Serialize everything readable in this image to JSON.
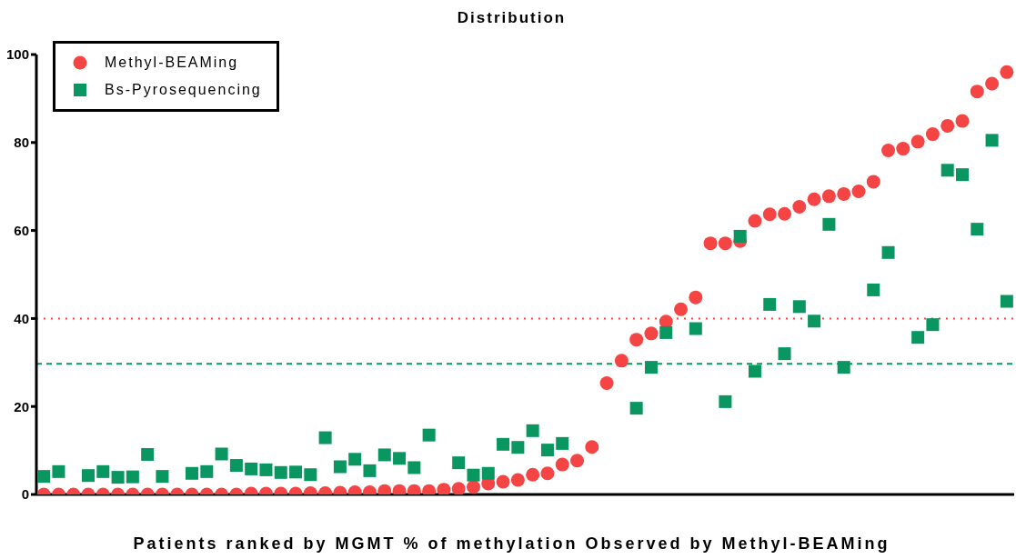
{
  "chart_data": {
    "type": "scatter",
    "title": "Distribution",
    "xlabel": "Patients ranked by MGMT % of methylation Observed by Methyl-BEAMing",
    "categories": [
      null,
      null,
      null,
      null,
      null,
      null,
      null,
      null,
      null,
      null,
      null,
      null,
      null,
      null,
      null,
      null,
      null,
      null,
      null,
      null,
      null,
      null,
      null,
      null,
      null,
      null,
      null,
      null,
      null,
      null,
      null,
      null,
      null,
      null,
      null,
      null,
      null,
      null,
      null,
      null,
      null,
      null,
      null,
      null,
      null,
      null,
      null,
      null,
      null,
      null,
      null,
      null,
      null,
      null,
      null,
      null,
      null,
      null,
      null,
      null,
      null,
      null,
      null,
      null,
      null,
      null
    ],
    "series": [
      {
        "name": "Methyl-BEAMing",
        "color": "#f44444",
        "marker": "circle",
        "values": [
          0,
          0,
          0,
          0,
          0,
          0,
          0,
          0,
          0,
          0,
          0,
          0,
          0,
          0,
          0.2,
          0.2,
          0.2,
          0.2,
          0.3,
          0.3,
          0.4,
          0.5,
          0.5,
          0.8,
          0.8,
          0.8,
          0.8,
          1.1,
          1.3,
          1.7,
          2.5,
          2.9,
          3.3,
          4.5,
          4.8,
          6.8,
          7.7,
          10.8,
          25.3,
          30.4,
          35.2,
          36.6,
          39.3,
          42.1,
          44.8,
          57.1,
          57.1,
          57.6,
          62.2,
          63.7,
          63.8,
          65.4,
          67.1,
          67.8,
          68.3,
          68.9,
          71.1,
          78.2,
          78.6,
          80.2,
          81.9,
          83.8,
          84.9,
          91.6,
          93.4,
          96.0
        ]
      },
      {
        "name": "Bs-Pyrosequencing",
        "color": "#0a9660",
        "marker": "square",
        "values": [
          4.1,
          5.2,
          null,
          4.3,
          5.2,
          3.9,
          4.0,
          9.1,
          4.1,
          null,
          4.8,
          5.2,
          9.2,
          6.6,
          5.8,
          5.6,
          5.0,
          5.1,
          4.5,
          12.9,
          6.3,
          8.0,
          5.4,
          9.0,
          8.2,
          6.1,
          13.5,
          null,
          7.2,
          4.4,
          4.8,
          11.4,
          10.7,
          14.5,
          10.1,
          11.6,
          null,
          null,
          null,
          null,
          19.6,
          28.9,
          36.8,
          null,
          37.7,
          null,
          21.1,
          58.7,
          28.0,
          43.2,
          32.0,
          42.7,
          39.4,
          61.4,
          28.9,
          null,
          46.5,
          55.0,
          null,
          35.7,
          38.6,
          73.7,
          72.7,
          60.3,
          80.5,
          43.9
        ]
      }
    ],
    "ylim": [
      0,
      100
    ],
    "yticks": [
      0,
      20,
      40,
      60,
      80,
      100
    ],
    "grid": false,
    "legend": "top left",
    "tick_labels": "y",
    "ref_lines": [
      {
        "axis": "y",
        "value": 40,
        "color": "#f44444",
        "line_style": "dotted"
      },
      {
        "axis": "y",
        "value": 29.7,
        "color": "#0a9660",
        "line_style": "dashed"
      }
    ]
  }
}
